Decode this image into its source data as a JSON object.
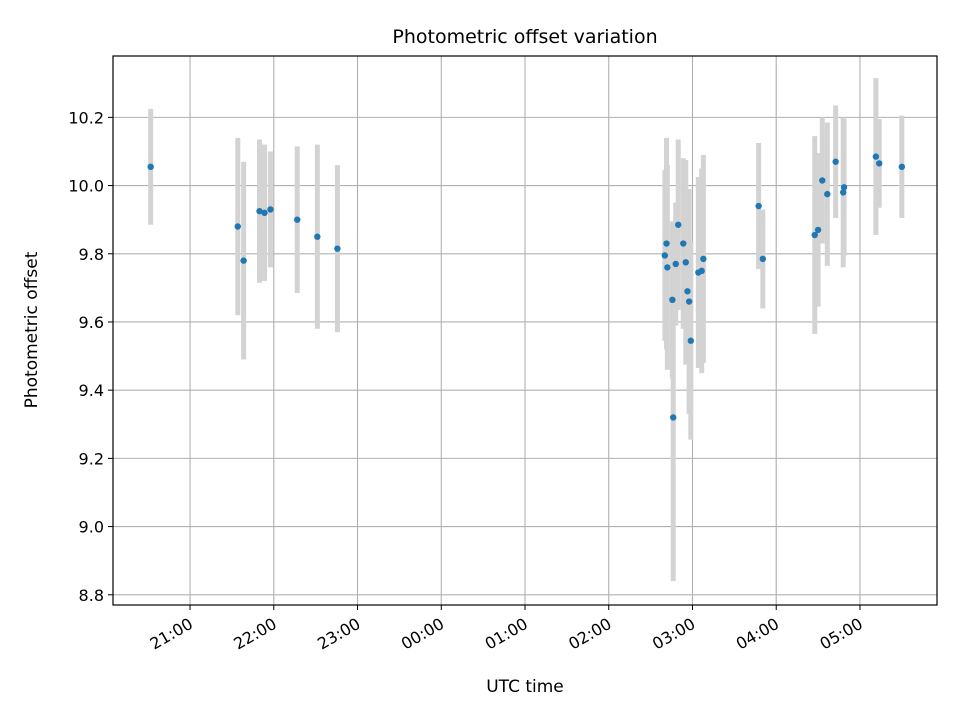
{
  "chart_data": {
    "type": "scatter",
    "title": "Photometric offset variation",
    "xlabel": "UTC time",
    "ylabel": "Photometric offset",
    "x_unit": "hours since 21:00 UTC",
    "xlim": [
      -0.92,
      8.92
    ],
    "ylim": [
      8.77,
      10.38
    ],
    "grid": true,
    "xtick_values": [
      0,
      1,
      2,
      3,
      4,
      5,
      6,
      7,
      8
    ],
    "xtick_labels": [
      "21:00",
      "22:00",
      "23:00",
      "00:00",
      "01:00",
      "02:00",
      "03:00",
      "04:00",
      "05:00"
    ],
    "yticks": [
      8.8,
      9.0,
      9.2,
      9.4,
      9.6,
      9.8,
      10.0,
      10.2
    ],
    "ytick_labels": [
      "8.8",
      "9.0",
      "9.2",
      "9.4",
      "9.6",
      "9.8",
      "10.0",
      "10.2"
    ],
    "point_color": "#1f77b4",
    "errorbar_color": "#d3d3d3",
    "points": [
      {
        "x": -0.47,
        "y": 10.055,
        "err": 0.17
      },
      {
        "x": 0.57,
        "y": 9.88,
        "err": 0.26
      },
      {
        "x": 0.64,
        "y": 9.78,
        "err": 0.29
      },
      {
        "x": 0.83,
        "y": 9.925,
        "err": 0.21
      },
      {
        "x": 0.89,
        "y": 9.92,
        "err": 0.2
      },
      {
        "x": 0.96,
        "y": 9.93,
        "err": 0.17
      },
      {
        "x": 1.28,
        "y": 9.9,
        "err": 0.215
      },
      {
        "x": 1.52,
        "y": 9.85,
        "err": 0.27
      },
      {
        "x": 1.76,
        "y": 9.815,
        "err": 0.245
      },
      {
        "x": 5.67,
        "y": 9.795,
        "err": 0.25
      },
      {
        "x": 5.69,
        "y": 9.83,
        "err": 0.31
      },
      {
        "x": 5.7,
        "y": 9.76,
        "err": 0.3
      },
      {
        "x": 5.76,
        "y": 9.665,
        "err": 0.23
      },
      {
        "x": 5.77,
        "y": 9.32,
        "err": 0.48
      },
      {
        "x": 5.8,
        "y": 9.77,
        "err": 0.18
      },
      {
        "x": 5.83,
        "y": 9.885,
        "err": 0.25
      },
      {
        "x": 5.89,
        "y": 9.83,
        "err": 0.25
      },
      {
        "x": 5.92,
        "y": 9.775,
        "err": 0.3
      },
      {
        "x": 5.94,
        "y": 9.69,
        "err": 0.21
      },
      {
        "x": 5.96,
        "y": 9.66,
        "err": 0.33
      },
      {
        "x": 5.98,
        "y": 9.545,
        "err": 0.29
      },
      {
        "x": 6.07,
        "y": 9.745,
        "err": 0.28
      },
      {
        "x": 6.11,
        "y": 9.75,
        "err": 0.3
      },
      {
        "x": 6.13,
        "y": 9.785,
        "err": 0.305
      },
      {
        "x": 6.79,
        "y": 9.94,
        "err": 0.185
      },
      {
        "x": 6.84,
        "y": 9.785,
        "err": 0.145
      },
      {
        "x": 7.46,
        "y": 9.855,
        "err": 0.29
      },
      {
        "x": 7.5,
        "y": 9.87,
        "err": 0.225
      },
      {
        "x": 7.55,
        "y": 10.015,
        "err": 0.185
      },
      {
        "x": 7.61,
        "y": 9.975,
        "err": 0.21
      },
      {
        "x": 7.71,
        "y": 10.07,
        "err": 0.165
      },
      {
        "x": 7.8,
        "y": 9.98,
        "err": 0.22
      },
      {
        "x": 7.81,
        "y": 9.995,
        "err": 0.2
      },
      {
        "x": 8.19,
        "y": 10.085,
        "err": 0.23
      },
      {
        "x": 8.23,
        "y": 10.065,
        "err": 0.13
      },
      {
        "x": 8.5,
        "y": 10.055,
        "err": 0.15
      }
    ]
  }
}
